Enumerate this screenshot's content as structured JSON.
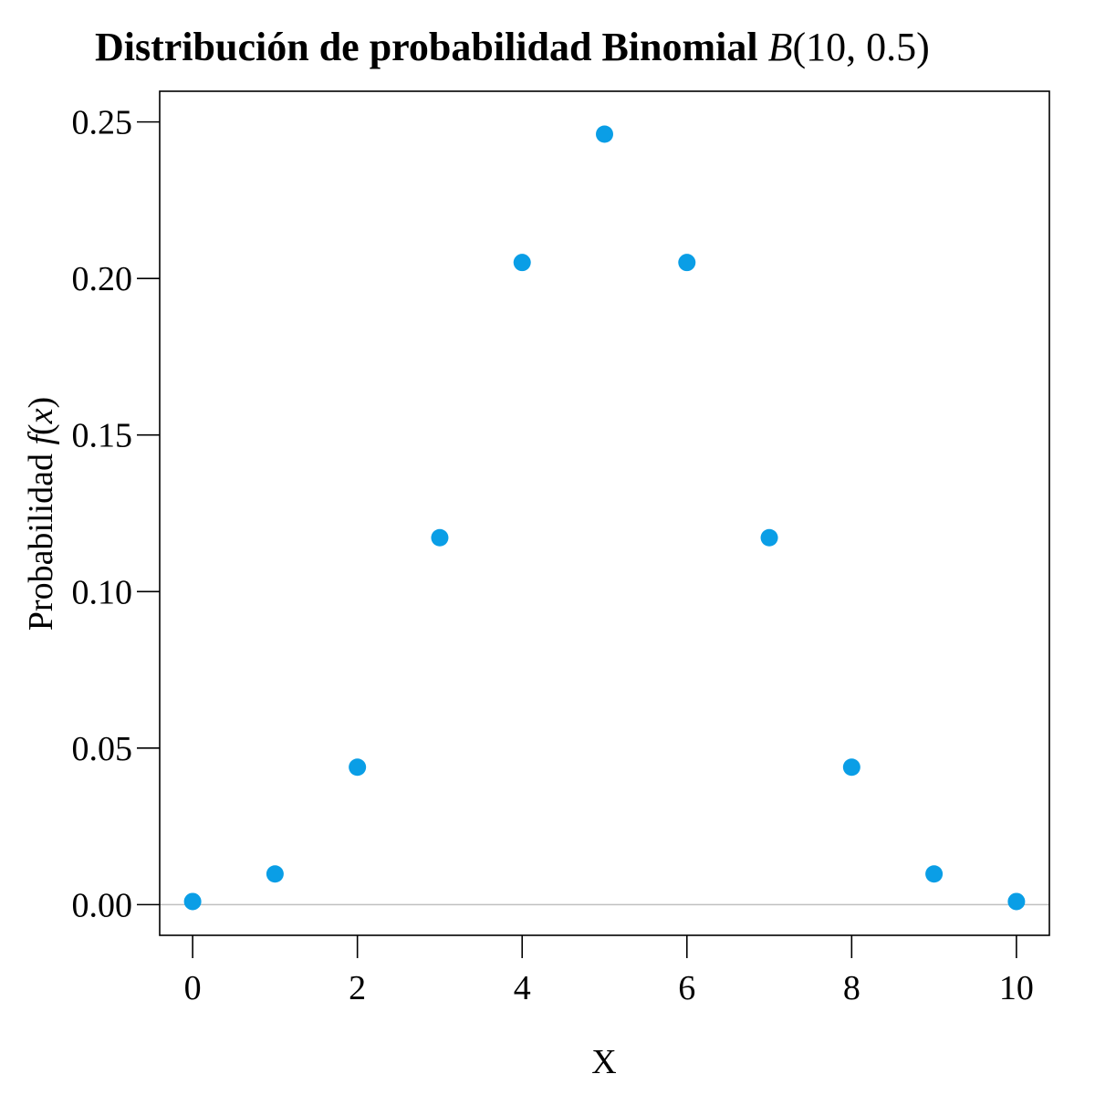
{
  "chart_data": {
    "type": "scatter",
    "title": {
      "bold": "Distribución de probabilidad Binomial",
      "math_italic": "B",
      "math_rest": "(10, 0.5)"
    },
    "xlabel": "X",
    "ylabel": {
      "text": "Probabilidad",
      "math_italic": "f",
      "math_open": "(",
      "math_var": "x",
      "math_close": ")"
    },
    "xlim": [
      -0.4,
      10.4
    ],
    "ylim": [
      -0.0098,
      0.2598
    ],
    "x_ticks": [
      0,
      2,
      4,
      6,
      8,
      10
    ],
    "x_tick_labels": [
      "0",
      "2",
      "4",
      "6",
      "8",
      "10"
    ],
    "y_ticks": [
      0.0,
      0.05,
      0.1,
      0.15,
      0.2,
      0.25
    ],
    "y_tick_labels": [
      "0.00",
      "0.05",
      "0.10",
      "0.15",
      "0.20",
      "0.25"
    ],
    "reference_line_y": 0,
    "grid": false,
    "series": [
      {
        "x": [
          0,
          1,
          2,
          3,
          4,
          5,
          6,
          7,
          8,
          9,
          10
        ],
        "y": [
          0.001,
          0.0098,
          0.0439,
          0.1172,
          0.2051,
          0.2461,
          0.2051,
          0.1172,
          0.0439,
          0.0098,
          0.001
        ],
        "color": "#0a9ee6"
      }
    ],
    "colors": {
      "marker": "#0a9ee6",
      "reference_line": "#c0c0c0",
      "frame": "#000000"
    }
  }
}
